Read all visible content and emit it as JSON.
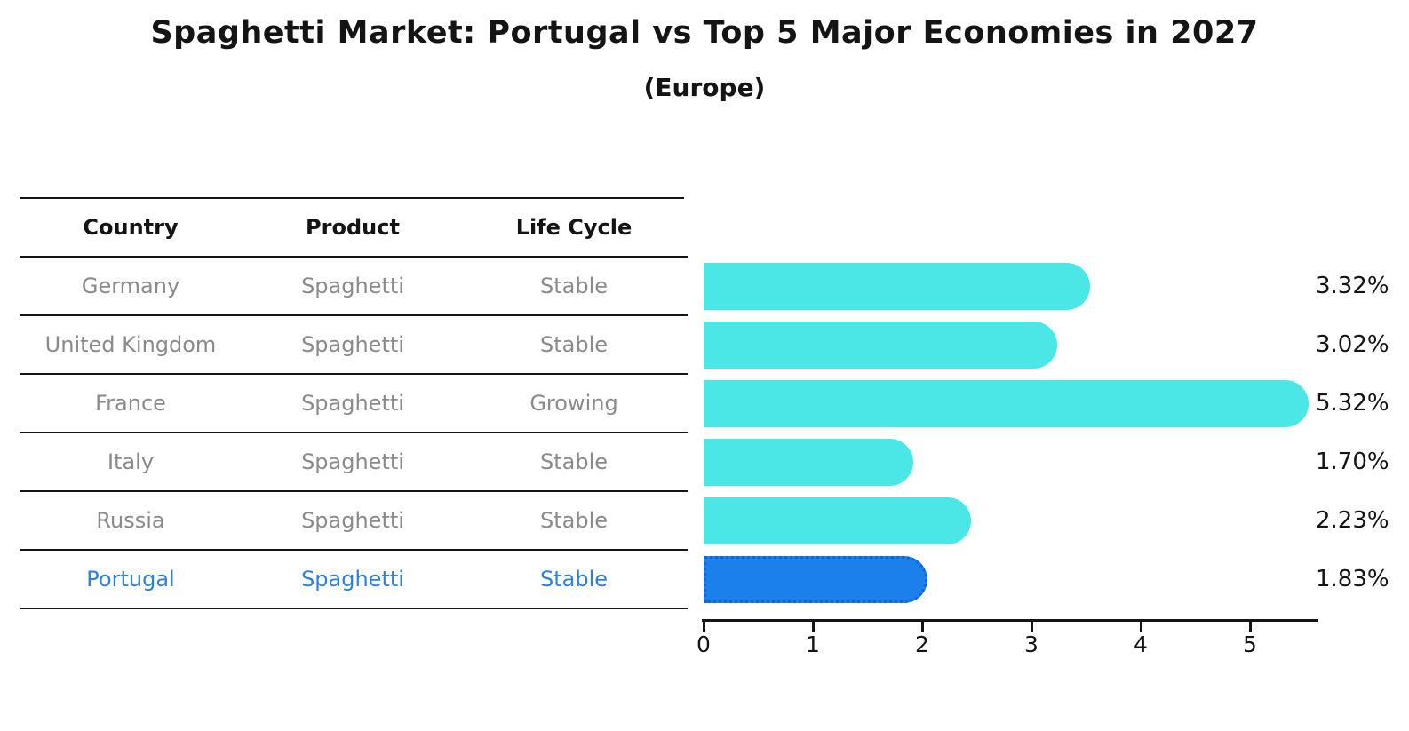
{
  "title": "Spaghetti Market: Portugal vs Top 5 Major Economies in 2027",
  "subtitle": "(Europe)",
  "table": {
    "headers": [
      "Country",
      "Product",
      "Life Cycle"
    ],
    "rows": [
      {
        "country": "Germany",
        "product": "Spaghetti",
        "life_cycle": "Stable",
        "highlight": false
      },
      {
        "country": "United Kingdom",
        "product": "Spaghetti",
        "life_cycle": "Stable",
        "highlight": false
      },
      {
        "country": "France",
        "product": "Spaghetti",
        "life_cycle": "Growing",
        "highlight": false
      },
      {
        "country": "Italy",
        "product": "Spaghetti",
        "life_cycle": "Stable",
        "highlight": false
      },
      {
        "country": "Russia",
        "product": "Spaghetti",
        "life_cycle": "Stable",
        "highlight": false
      },
      {
        "country": "Portugal",
        "product": "Spaghetti",
        "life_cycle": "Stable",
        "highlight": true
      }
    ]
  },
  "chart_data": {
    "type": "bar",
    "orientation": "horizontal",
    "title": "Spaghetti Market: Portugal vs Top 5 Major Economies in 2027",
    "subtitle": "(Europe)",
    "categories": [
      "Germany",
      "United Kingdom",
      "France",
      "Italy",
      "Russia",
      "Portugal"
    ],
    "values": [
      3.32,
      3.02,
      5.32,
      1.7,
      2.23,
      1.83
    ],
    "value_labels": [
      "3.32%",
      "3.02%",
      "5.32%",
      "1.70%",
      "2.23%",
      "1.83%"
    ],
    "highlight_index": 5,
    "xlim": [
      0,
      5.6
    ],
    "x_ticks": [
      "0",
      "1",
      "2",
      "3",
      "4",
      "5"
    ],
    "grid": false,
    "legend": false
  },
  "colors": {
    "bar": "#4BE7E7",
    "highlight_bar": "#1C80EC",
    "highlight_border": "#1464D2",
    "row_text": "#8A8A8A",
    "highlight_text": "#2F80D5",
    "heading_text": "#141414",
    "axis": "#141414",
    "background": "#FFFFFF"
  }
}
